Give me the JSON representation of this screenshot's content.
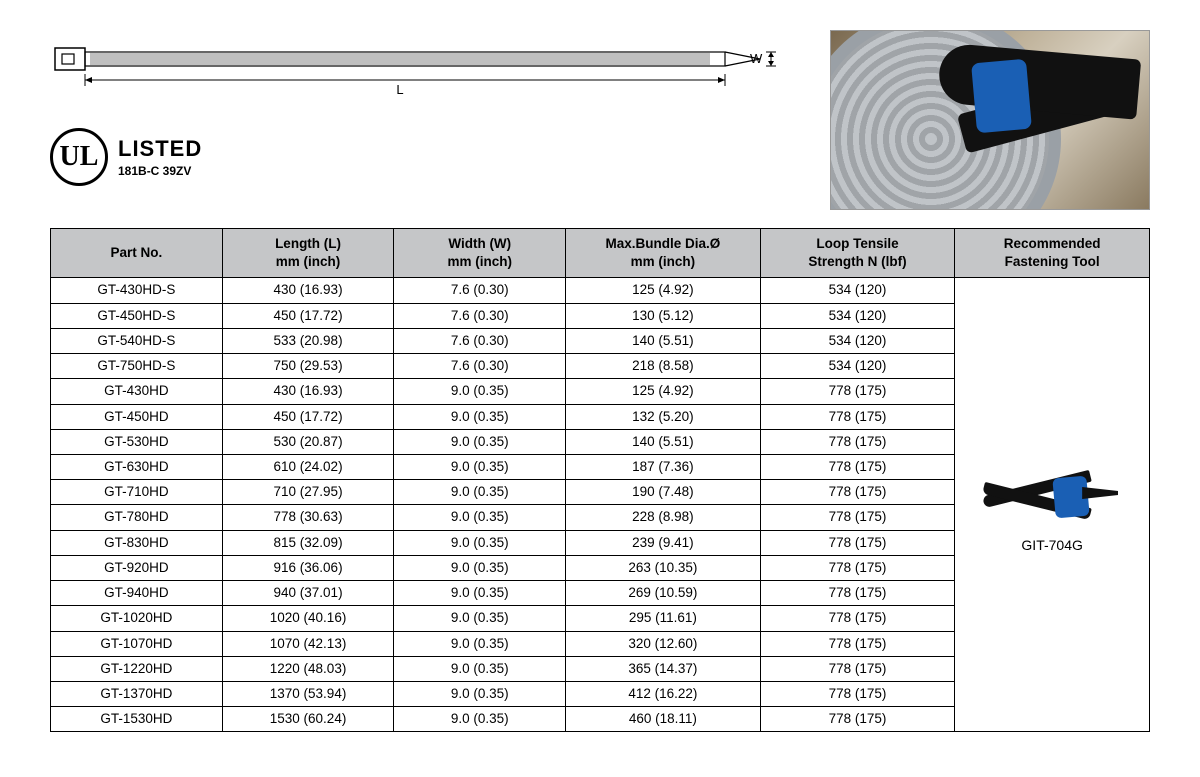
{
  "diagram": {
    "length_label": "L",
    "width_label": "W"
  },
  "ul_mark": {
    "symbol": "UL",
    "listed": "LISTED",
    "code": "181B-C 39ZV"
  },
  "table": {
    "header_bg": "#c5c6c8",
    "border_color": "#000000",
    "columns": [
      {
        "line1": "Part No.",
        "line2": ""
      },
      {
        "line1": "Length (L)",
        "line2": "mm (inch)"
      },
      {
        "line1": "Width (W)",
        "line2": "mm (inch)"
      },
      {
        "line1": "Max.Bundle Dia.Ø",
        "line2": "mm (inch)"
      },
      {
        "line1": "Loop Tensile",
        "line2": "Strength N (lbf)"
      },
      {
        "line1": "Recommended",
        "line2": "Fastening Tool"
      }
    ],
    "rows": [
      {
        "part": "GT-430HD-S",
        "length": "430 (16.93)",
        "width": "7.6 (0.30)",
        "bundle": "125 (4.92)",
        "tensile": "534 (120)"
      },
      {
        "part": "GT-450HD-S",
        "length": "450 (17.72)",
        "width": "7.6 (0.30)",
        "bundle": "130 (5.12)",
        "tensile": "534 (120)"
      },
      {
        "part": "GT-540HD-S",
        "length": "533 (20.98)",
        "width": "7.6 (0.30)",
        "bundle": "140 (5.51)",
        "tensile": "534 (120)"
      },
      {
        "part": "GT-750HD-S",
        "length": "750 (29.53)",
        "width": "7.6 (0.30)",
        "bundle": "218 (8.58)",
        "tensile": "534 (120)"
      },
      {
        "part": "GT-430HD",
        "length": "430 (16.93)",
        "width": "9.0 (0.35)",
        "bundle": "125 (4.92)",
        "tensile": "778 (175)"
      },
      {
        "part": "GT-450HD",
        "length": "450 (17.72)",
        "width": "9.0 (0.35)",
        "bundle": "132 (5.20)",
        "tensile": "778 (175)"
      },
      {
        "part": "GT-530HD",
        "length": "530 (20.87)",
        "width": "9.0 (0.35)",
        "bundle": "140 (5.51)",
        "tensile": "778 (175)"
      },
      {
        "part": "GT-630HD",
        "length": "610 (24.02)",
        "width": "9.0 (0.35)",
        "bundle": "187 (7.36)",
        "tensile": "778 (175)"
      },
      {
        "part": "GT-710HD",
        "length": "710 (27.95)",
        "width": "9.0 (0.35)",
        "bundle": "190 (7.48)",
        "tensile": "778 (175)"
      },
      {
        "part": "GT-780HD",
        "length": "778 (30.63)",
        "width": "9.0 (0.35)",
        "bundle": "228 (8.98)",
        "tensile": "778 (175)"
      },
      {
        "part": "GT-830HD",
        "length": "815 (32.09)",
        "width": "9.0 (0.35)",
        "bundle": "239 (9.41)",
        "tensile": "778 (175)"
      },
      {
        "part": "GT-920HD",
        "length": "916 (36.06)",
        "width": "9.0 (0.35)",
        "bundle": "263 (10.35)",
        "tensile": "778 (175)"
      },
      {
        "part": "GT-940HD",
        "length": "940 (37.01)",
        "width": "9.0 (0.35)",
        "bundle": "269 (10.59)",
        "tensile": "778 (175)"
      },
      {
        "part": "GT-1020HD",
        "length": "1020 (40.16)",
        "width": "9.0 (0.35)",
        "bundle": "295 (11.61)",
        "tensile": "778 (175)"
      },
      {
        "part": "GT-1070HD",
        "length": "1070 (42.13)",
        "width": "9.0 (0.35)",
        "bundle": "320 (12.60)",
        "tensile": "778 (175)"
      },
      {
        "part": "GT-1220HD",
        "length": "1220 (48.03)",
        "width": "9.0 (0.35)",
        "bundle": "365 (14.37)",
        "tensile": "778 (175)"
      },
      {
        "part": "GT-1370HD",
        "length": "1370 (53.94)",
        "width": "9.0 (0.35)",
        "bundle": "412 (16.22)",
        "tensile": "778 (175)"
      },
      {
        "part": "GT-1530HD",
        "length": "1530 (60.24)",
        "width": "9.0 (0.35)",
        "bundle": "460 (18.11)",
        "tensile": "778 (175)"
      }
    ],
    "tool_label": "GIT-704G"
  }
}
